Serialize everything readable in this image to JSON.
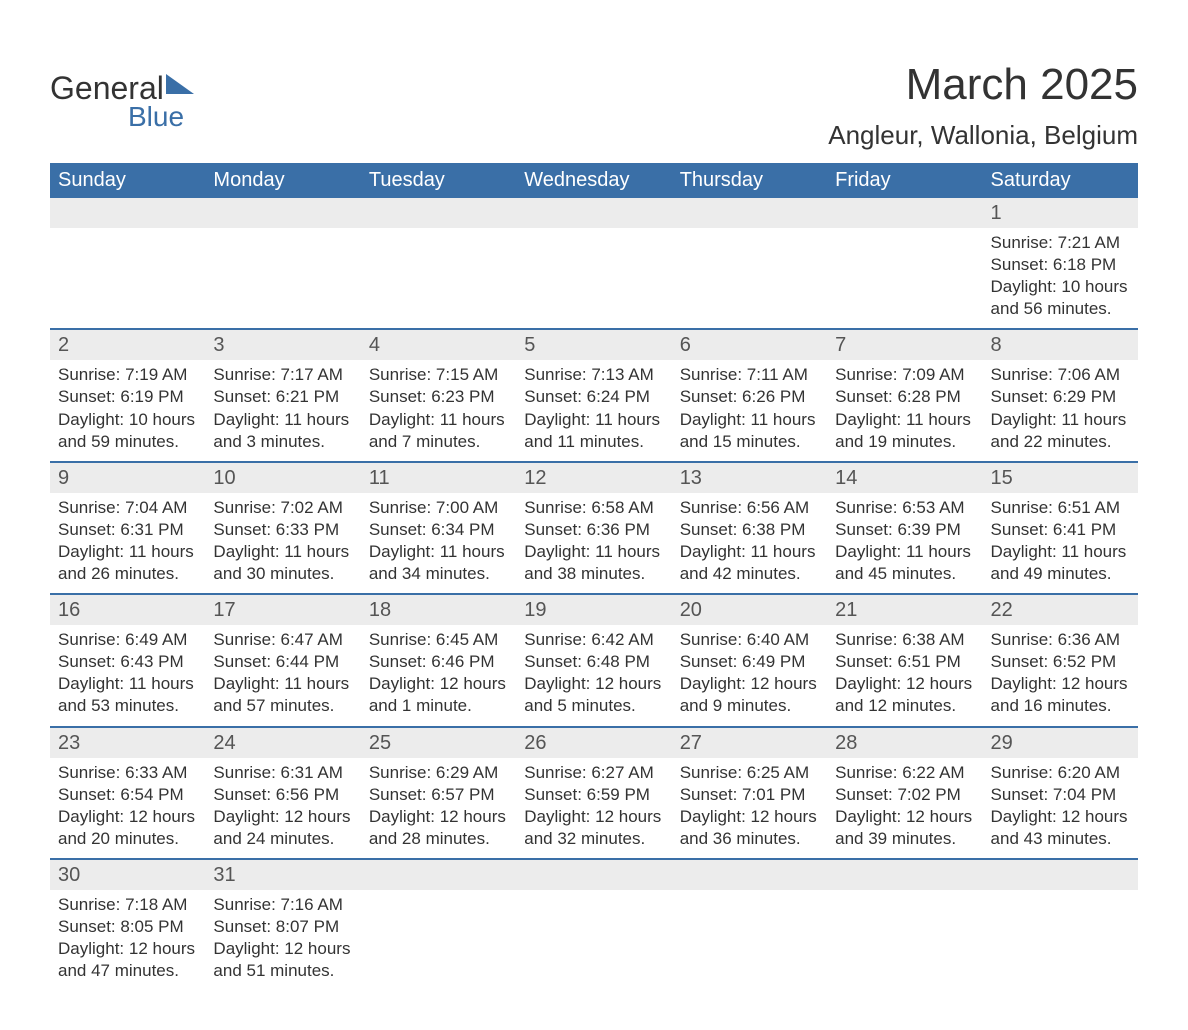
{
  "logo": {
    "text_general": "General",
    "text_blue": "Blue"
  },
  "title": "March 2025",
  "location": "Angleur, Wallonia, Belgium",
  "colors": {
    "header_bg": "#3a6fa7",
    "header_text": "#ffffff",
    "daynum_bg": "#ececec",
    "border": "#3a6fa7",
    "body_text": "#333333"
  },
  "weekdays": [
    "Sunday",
    "Monday",
    "Tuesday",
    "Wednesday",
    "Thursday",
    "Friday",
    "Saturday"
  ],
  "weeks": [
    [
      {},
      {},
      {},
      {},
      {},
      {},
      {
        "day": "1",
        "sunrise": "Sunrise: 7:21 AM",
        "sunset": "Sunset: 6:18 PM",
        "daylight": "Daylight: 10 hours and 56 minutes."
      }
    ],
    [
      {
        "day": "2",
        "sunrise": "Sunrise: 7:19 AM",
        "sunset": "Sunset: 6:19 PM",
        "daylight": "Daylight: 10 hours and 59 minutes."
      },
      {
        "day": "3",
        "sunrise": "Sunrise: 7:17 AM",
        "sunset": "Sunset: 6:21 PM",
        "daylight": "Daylight: 11 hours and 3 minutes."
      },
      {
        "day": "4",
        "sunrise": "Sunrise: 7:15 AM",
        "sunset": "Sunset: 6:23 PM",
        "daylight": "Daylight: 11 hours and 7 minutes."
      },
      {
        "day": "5",
        "sunrise": "Sunrise: 7:13 AM",
        "sunset": "Sunset: 6:24 PM",
        "daylight": "Daylight: 11 hours and 11 minutes."
      },
      {
        "day": "6",
        "sunrise": "Sunrise: 7:11 AM",
        "sunset": "Sunset: 6:26 PM",
        "daylight": "Daylight: 11 hours and 15 minutes."
      },
      {
        "day": "7",
        "sunrise": "Sunrise: 7:09 AM",
        "sunset": "Sunset: 6:28 PM",
        "daylight": "Daylight: 11 hours and 19 minutes."
      },
      {
        "day": "8",
        "sunrise": "Sunrise: 7:06 AM",
        "sunset": "Sunset: 6:29 PM",
        "daylight": "Daylight: 11 hours and 22 minutes."
      }
    ],
    [
      {
        "day": "9",
        "sunrise": "Sunrise: 7:04 AM",
        "sunset": "Sunset: 6:31 PM",
        "daylight": "Daylight: 11 hours and 26 minutes."
      },
      {
        "day": "10",
        "sunrise": "Sunrise: 7:02 AM",
        "sunset": "Sunset: 6:33 PM",
        "daylight": "Daylight: 11 hours and 30 minutes."
      },
      {
        "day": "11",
        "sunrise": "Sunrise: 7:00 AM",
        "sunset": "Sunset: 6:34 PM",
        "daylight": "Daylight: 11 hours and 34 minutes."
      },
      {
        "day": "12",
        "sunrise": "Sunrise: 6:58 AM",
        "sunset": "Sunset: 6:36 PM",
        "daylight": "Daylight: 11 hours and 38 minutes."
      },
      {
        "day": "13",
        "sunrise": "Sunrise: 6:56 AM",
        "sunset": "Sunset: 6:38 PM",
        "daylight": "Daylight: 11 hours and 42 minutes."
      },
      {
        "day": "14",
        "sunrise": "Sunrise: 6:53 AM",
        "sunset": "Sunset: 6:39 PM",
        "daylight": "Daylight: 11 hours and 45 minutes."
      },
      {
        "day": "15",
        "sunrise": "Sunrise: 6:51 AM",
        "sunset": "Sunset: 6:41 PM",
        "daylight": "Daylight: 11 hours and 49 minutes."
      }
    ],
    [
      {
        "day": "16",
        "sunrise": "Sunrise: 6:49 AM",
        "sunset": "Sunset: 6:43 PM",
        "daylight": "Daylight: 11 hours and 53 minutes."
      },
      {
        "day": "17",
        "sunrise": "Sunrise: 6:47 AM",
        "sunset": "Sunset: 6:44 PM",
        "daylight": "Daylight: 11 hours and 57 minutes."
      },
      {
        "day": "18",
        "sunrise": "Sunrise: 6:45 AM",
        "sunset": "Sunset: 6:46 PM",
        "daylight": "Daylight: 12 hours and 1 minute."
      },
      {
        "day": "19",
        "sunrise": "Sunrise: 6:42 AM",
        "sunset": "Sunset: 6:48 PM",
        "daylight": "Daylight: 12 hours and 5 minutes."
      },
      {
        "day": "20",
        "sunrise": "Sunrise: 6:40 AM",
        "sunset": "Sunset: 6:49 PM",
        "daylight": "Daylight: 12 hours and 9 minutes."
      },
      {
        "day": "21",
        "sunrise": "Sunrise: 6:38 AM",
        "sunset": "Sunset: 6:51 PM",
        "daylight": "Daylight: 12 hours and 12 minutes."
      },
      {
        "day": "22",
        "sunrise": "Sunrise: 6:36 AM",
        "sunset": "Sunset: 6:52 PM",
        "daylight": "Daylight: 12 hours and 16 minutes."
      }
    ],
    [
      {
        "day": "23",
        "sunrise": "Sunrise: 6:33 AM",
        "sunset": "Sunset: 6:54 PM",
        "daylight": "Daylight: 12 hours and 20 minutes."
      },
      {
        "day": "24",
        "sunrise": "Sunrise: 6:31 AM",
        "sunset": "Sunset: 6:56 PM",
        "daylight": "Daylight: 12 hours and 24 minutes."
      },
      {
        "day": "25",
        "sunrise": "Sunrise: 6:29 AM",
        "sunset": "Sunset: 6:57 PM",
        "daylight": "Daylight: 12 hours and 28 minutes."
      },
      {
        "day": "26",
        "sunrise": "Sunrise: 6:27 AM",
        "sunset": "Sunset: 6:59 PM",
        "daylight": "Daylight: 12 hours and 32 minutes."
      },
      {
        "day": "27",
        "sunrise": "Sunrise: 6:25 AM",
        "sunset": "Sunset: 7:01 PM",
        "daylight": "Daylight: 12 hours and 36 minutes."
      },
      {
        "day": "28",
        "sunrise": "Sunrise: 6:22 AM",
        "sunset": "Sunset: 7:02 PM",
        "daylight": "Daylight: 12 hours and 39 minutes."
      },
      {
        "day": "29",
        "sunrise": "Sunrise: 6:20 AM",
        "sunset": "Sunset: 7:04 PM",
        "daylight": "Daylight: 12 hours and 43 minutes."
      }
    ],
    [
      {
        "day": "30",
        "sunrise": "Sunrise: 7:18 AM",
        "sunset": "Sunset: 8:05 PM",
        "daylight": "Daylight: 12 hours and 47 minutes."
      },
      {
        "day": "31",
        "sunrise": "Sunrise: 7:16 AM",
        "sunset": "Sunset: 8:07 PM",
        "daylight": "Daylight: 12 hours and 51 minutes."
      },
      {},
      {},
      {},
      {},
      {}
    ]
  ]
}
